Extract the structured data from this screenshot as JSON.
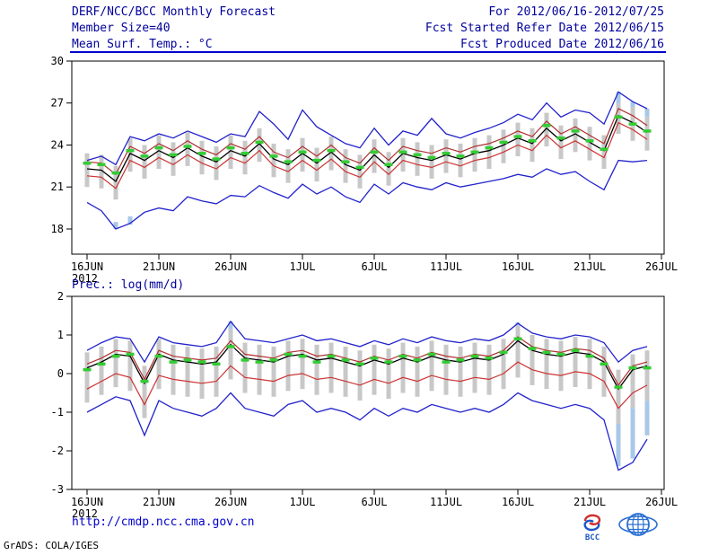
{
  "header": {
    "title": "DERF/NCC/BCC Monthly Forecast",
    "member_size": "Member Size=40",
    "valid_range": "For 2012/06/16-2012/07/25",
    "refer_date": "Fcst Started Refer Date 2012/06/15",
    "produced_date": "Fcst Produced Date 2012/06/16"
  },
  "footer": {
    "url": "http://cmdp.ncc.cma.gov.cn",
    "credit": "GrADS: COLA/IGES"
  },
  "logos": {
    "bcc_label": "BCC"
  },
  "colors": {
    "bar": "#c8c8c8",
    "bar_ext": "#a8c8e8",
    "blue": "#2222cc",
    "red": "#cc3333",
    "red_dark": "#b03030",
    "black": "#000000",
    "green": "#33cc33"
  },
  "chart_data": [
    {
      "type": "line",
      "title": "Mean Surf. Temp.: °C",
      "xlabel": "",
      "ylabel": "°C",
      "ylim": [
        16.2,
        30
      ],
      "yticks": [
        18,
        21,
        24,
        27,
        30
      ],
      "xtick_labels": [
        "16JUN",
        "21JUN",
        "26JUN",
        "1JUL",
        "6JUL",
        "11JUL",
        "16JUL",
        "21JUL",
        "26JUL"
      ],
      "xtick_days": [
        0,
        5,
        10,
        15,
        20,
        25,
        30,
        35,
        40
      ],
      "year": "2012",
      "legend": "none",
      "grid": "off",
      "series": {
        "max": [
          22.9,
          23.2,
          22.6,
          24.6,
          24.3,
          24.8,
          24.5,
          25.0,
          24.6,
          24.2,
          24.8,
          24.6,
          26.4,
          25.5,
          24.4,
          26.5,
          25.3,
          24.7,
          24.1,
          23.8,
          25.2,
          24.0,
          25.0,
          24.7,
          25.9,
          24.8,
          24.5,
          24.9,
          25.2,
          25.6,
          26.2,
          25.8,
          27.0,
          26.0,
          26.5,
          26.3,
          25.5,
          27.8,
          27.1,
          26.6
        ],
        "upper": [
          22.8,
          22.7,
          21.9,
          23.9,
          23.4,
          24.1,
          23.6,
          24.3,
          23.7,
          23.3,
          24.1,
          23.7,
          24.6,
          23.5,
          23.1,
          23.9,
          23.2,
          24.0,
          23.1,
          22.7,
          23.8,
          22.9,
          23.9,
          23.6,
          23.4,
          23.8,
          23.5,
          23.9,
          24.1,
          24.5,
          25.0,
          24.6,
          25.7,
          24.8,
          25.3,
          24.7,
          24.1,
          26.6,
          26.1,
          25.4
        ],
        "mean": [
          22.3,
          22.2,
          21.4,
          23.4,
          22.9,
          23.6,
          23.1,
          23.8,
          23.2,
          22.8,
          23.6,
          23.2,
          24.1,
          23.0,
          22.6,
          23.4,
          22.7,
          23.5,
          22.6,
          22.2,
          23.3,
          22.4,
          23.4,
          23.1,
          22.9,
          23.3,
          23.0,
          23.4,
          23.6,
          24.0,
          24.5,
          24.1,
          25.2,
          24.3,
          24.8,
          24.2,
          23.6,
          26.1,
          25.6,
          24.9
        ],
        "lower": [
          21.8,
          21.7,
          20.9,
          22.9,
          22.4,
          23.1,
          22.6,
          23.3,
          22.7,
          22.3,
          23.1,
          22.7,
          23.6,
          22.5,
          22.1,
          22.9,
          22.2,
          23.0,
          22.1,
          21.7,
          22.8,
          21.9,
          22.9,
          22.6,
          22.4,
          22.8,
          22.5,
          22.9,
          23.1,
          23.5,
          24.0,
          23.6,
          24.7,
          23.8,
          24.3,
          23.7,
          23.1,
          25.6,
          25.1,
          24.4
        ],
        "min": [
          19.9,
          19.3,
          18.0,
          18.4,
          19.2,
          19.5,
          19.3,
          20.3,
          20.0,
          19.8,
          20.4,
          20.3,
          21.1,
          20.6,
          20.2,
          21.2,
          20.5,
          21.0,
          20.3,
          19.9,
          21.2,
          20.5,
          21.3,
          21.0,
          20.8,
          21.3,
          21.0,
          21.2,
          21.4,
          21.6,
          21.9,
          21.7,
          22.3,
          21.9,
          22.1,
          21.4,
          20.8,
          22.9,
          22.8,
          22.9
        ],
        "median": [
          22.7,
          22.6,
          22.0,
          23.6,
          23.2,
          23.8,
          23.3,
          23.9,
          23.4,
          23.0,
          23.8,
          23.4,
          24.2,
          23.2,
          22.8,
          23.5,
          22.9,
          23.6,
          22.8,
          22.4,
          23.5,
          22.6,
          23.5,
          23.3,
          23.1,
          23.4,
          23.2,
          23.5,
          23.8,
          24.2,
          24.6,
          24.3,
          25.4,
          24.5,
          25.0,
          24.3,
          23.7,
          26.0,
          25.5,
          25.0
        ],
        "bar_high": [
          23.4,
          23.3,
          22.5,
          24.5,
          24.0,
          24.7,
          24.2,
          24.9,
          24.3,
          23.9,
          24.7,
          24.3,
          25.2,
          24.1,
          23.7,
          24.5,
          23.8,
          24.6,
          23.7,
          23.3,
          24.4,
          23.5,
          24.5,
          24.2,
          24.0,
          24.4,
          24.1,
          24.5,
          24.7,
          25.1,
          25.6,
          25.2,
          26.3,
          25.4,
          25.9,
          25.3,
          24.7,
          27.0,
          26.7,
          26.0
        ],
        "bar_low": [
          21.0,
          20.9,
          20.1,
          22.1,
          21.6,
          22.3,
          21.8,
          22.5,
          21.9,
          21.5,
          22.3,
          21.9,
          22.8,
          21.7,
          21.3,
          22.1,
          21.4,
          22.2,
          21.3,
          20.9,
          22.0,
          21.1,
          22.1,
          21.8,
          21.6,
          22.0,
          21.7,
          22.1,
          22.3,
          22.7,
          23.2,
          22.8,
          23.9,
          23.0,
          23.5,
          22.9,
          22.3,
          24.8,
          24.3,
          23.6
        ],
        "bar_ext": [
          [
            2,
            18.0,
            18.5
          ],
          [
            3,
            18.3,
            18.9
          ],
          [
            37,
            27.0,
            27.8
          ],
          [
            38,
            26.7,
            27.1
          ],
          [
            39,
            26.0,
            26.6
          ]
        ]
      }
    },
    {
      "type": "line",
      "title": "Prec.: log(mm/d)",
      "xlabel": "",
      "ylabel": "log(mm/d)",
      "ylim": [
        -3,
        2
      ],
      "yticks": [
        -3,
        -2,
        -1,
        0,
        1,
        2
      ],
      "xtick_labels": [
        "16JUN",
        "21JUN",
        "26JUN",
        "1JUL",
        "6JUL",
        "11JUL",
        "16JUL",
        "21JUL",
        "26JUL"
      ],
      "xtick_days": [
        0,
        5,
        10,
        15,
        20,
        25,
        30,
        35,
        40
      ],
      "year": "2012",
      "legend": "none",
      "grid": "off",
      "series": {
        "max": [
          0.6,
          0.8,
          0.95,
          0.9,
          0.3,
          0.95,
          0.8,
          0.75,
          0.7,
          0.8,
          1.35,
          0.9,
          0.85,
          0.8,
          0.9,
          1.0,
          0.85,
          0.9,
          0.8,
          0.7,
          0.85,
          0.75,
          0.9,
          0.8,
          0.95,
          0.85,
          0.8,
          0.9,
          0.85,
          1.0,
          1.3,
          1.05,
          0.95,
          0.9,
          1.0,
          0.95,
          0.8,
          0.3,
          0.6,
          0.7
        ],
        "upper": [
          0.25,
          0.4,
          0.6,
          0.55,
          -0.15,
          0.6,
          0.45,
          0.4,
          0.35,
          0.4,
          0.85,
          0.5,
          0.45,
          0.4,
          0.55,
          0.6,
          0.45,
          0.5,
          0.4,
          0.3,
          0.45,
          0.35,
          0.5,
          0.4,
          0.55,
          0.45,
          0.4,
          0.5,
          0.45,
          0.6,
          0.95,
          0.7,
          0.6,
          0.55,
          0.65,
          0.6,
          0.4,
          -0.3,
          0.2,
          0.3
        ],
        "mean": [
          0.15,
          0.3,
          0.5,
          0.45,
          -0.25,
          0.5,
          0.35,
          0.3,
          0.25,
          0.3,
          0.75,
          0.4,
          0.35,
          0.3,
          0.45,
          0.5,
          0.35,
          0.4,
          0.3,
          0.2,
          0.35,
          0.25,
          0.4,
          0.3,
          0.45,
          0.35,
          0.3,
          0.4,
          0.35,
          0.5,
          0.85,
          0.6,
          0.5,
          0.45,
          0.55,
          0.5,
          0.3,
          -0.4,
          0.1,
          0.2
        ],
        "lower": [
          -0.4,
          -0.2,
          0.0,
          -0.1,
          -0.8,
          -0.05,
          -0.15,
          -0.2,
          -0.25,
          -0.2,
          0.2,
          -0.1,
          -0.15,
          -0.2,
          -0.05,
          0.0,
          -0.15,
          -0.1,
          -0.2,
          -0.3,
          -0.15,
          -0.25,
          -0.1,
          -0.2,
          -0.05,
          -0.15,
          -0.2,
          -0.1,
          -0.15,
          0.0,
          0.3,
          0.1,
          0.0,
          -0.05,
          0.05,
          0.0,
          -0.2,
          -0.9,
          -0.5,
          -0.3
        ],
        "min": [
          -1.0,
          -0.8,
          -0.6,
          -0.7,
          -1.6,
          -0.7,
          -0.9,
          -1.0,
          -1.1,
          -0.9,
          -0.5,
          -0.9,
          -1.0,
          -1.1,
          -0.8,
          -0.7,
          -1.0,
          -0.9,
          -1.0,
          -1.2,
          -0.9,
          -1.1,
          -0.9,
          -1.0,
          -0.8,
          -0.9,
          -1.0,
          -0.9,
          -1.0,
          -0.8,
          -0.5,
          -0.7,
          -0.8,
          -0.9,
          -0.8,
          -0.9,
          -1.2,
          -2.5,
          -2.3,
          -1.7
        ],
        "median": [
          0.1,
          0.25,
          0.45,
          0.5,
          -0.2,
          0.45,
          0.3,
          0.35,
          0.3,
          0.25,
          0.7,
          0.35,
          0.3,
          0.35,
          0.5,
          0.45,
          0.3,
          0.45,
          0.35,
          0.25,
          0.4,
          0.3,
          0.45,
          0.35,
          0.5,
          0.3,
          0.35,
          0.45,
          0.4,
          0.55,
          0.9,
          0.65,
          0.55,
          0.5,
          0.6,
          0.45,
          0.25,
          -0.35,
          0.15,
          0.15
        ],
        "bar_high": [
          0.55,
          0.7,
          0.9,
          0.85,
          0.2,
          0.9,
          0.75,
          0.7,
          0.65,
          0.7,
          1.15,
          0.8,
          0.75,
          0.7,
          0.85,
          0.9,
          0.75,
          0.8,
          0.7,
          0.6,
          0.75,
          0.65,
          0.8,
          0.7,
          0.85,
          0.75,
          0.7,
          0.8,
          0.75,
          0.9,
          1.25,
          1.0,
          0.9,
          0.85,
          0.95,
          0.9,
          0.7,
          0.1,
          0.5,
          0.6
        ],
        "bar_low": [
          -0.75,
          -0.55,
          -0.35,
          -0.45,
          -1.15,
          -0.4,
          -0.55,
          -0.6,
          -0.65,
          -0.6,
          -0.15,
          -0.5,
          -0.55,
          -0.6,
          -0.45,
          -0.4,
          -0.55,
          -0.5,
          -0.6,
          -0.7,
          -0.55,
          -0.65,
          -0.5,
          -0.6,
          -0.45,
          -0.55,
          -0.6,
          -0.5,
          -0.55,
          -0.4,
          -0.1,
          -0.3,
          -0.4,
          -0.45,
          -0.35,
          -0.4,
          -0.6,
          -1.3,
          -0.9,
          -0.7
        ],
        "bar_ext": [
          [
            10,
            1.15,
            1.35
          ],
          [
            30,
            1.25,
            1.33
          ],
          [
            37,
            -2.4,
            -1.3
          ],
          [
            38,
            -2.2,
            -0.9
          ],
          [
            39,
            -1.6,
            -0.7
          ]
        ]
      }
    }
  ]
}
